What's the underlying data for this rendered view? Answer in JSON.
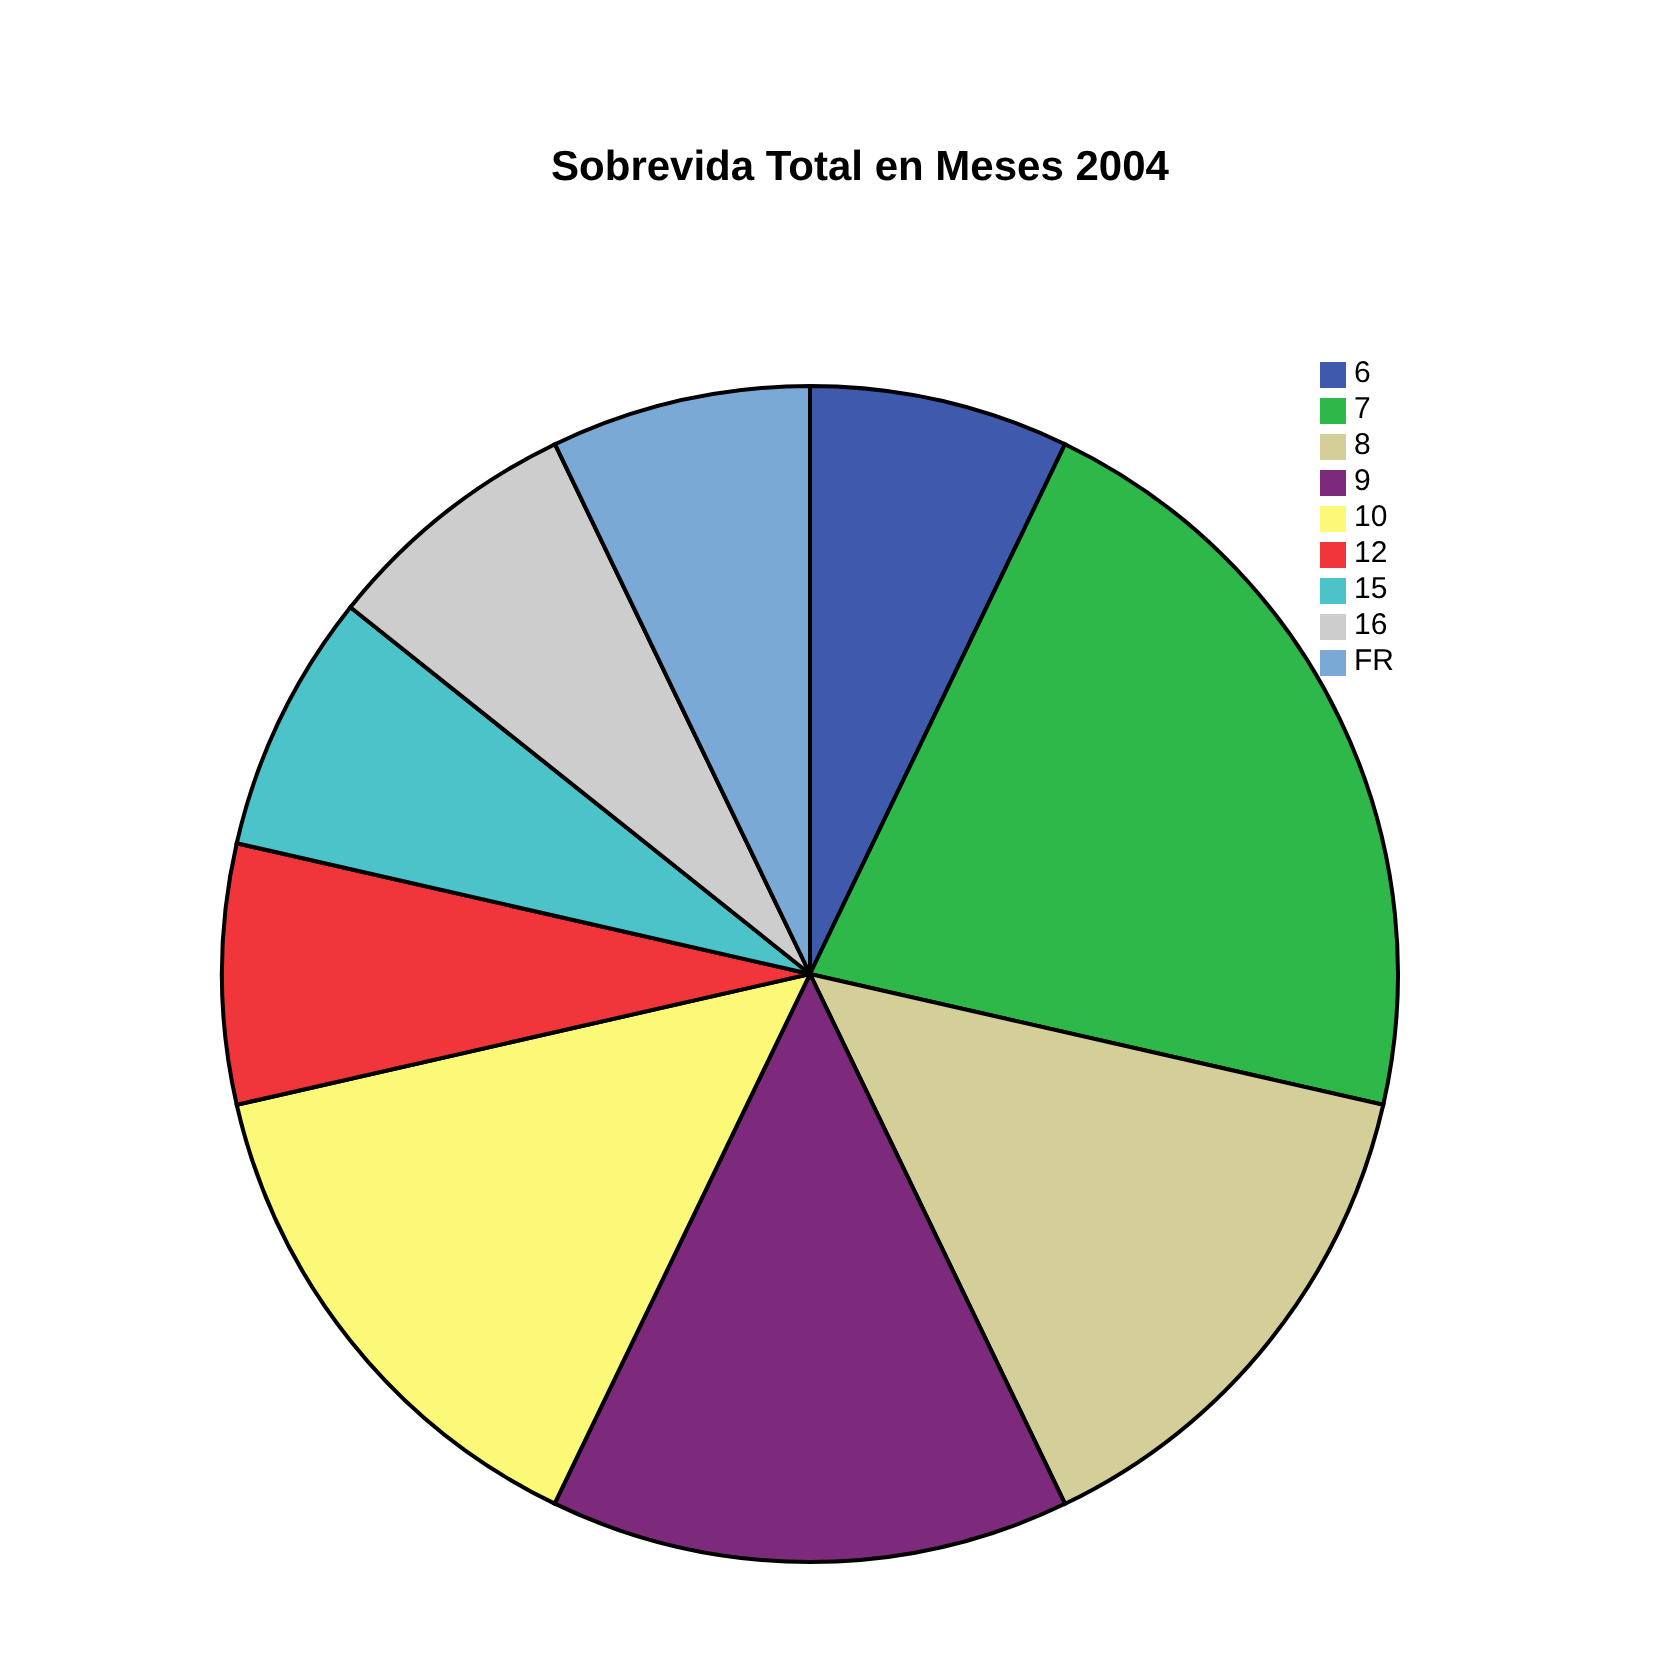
{
  "chart_data": {
    "type": "pie",
    "title": "Sobrevida Total en Meses 2004",
    "categories": [
      "6",
      "7",
      "8",
      "9",
      "10",
      "12",
      "15",
      "16",
      "FR"
    ],
    "values": [
      7.14,
      21.43,
      14.29,
      14.29,
      14.28,
      7.14,
      7.15,
      7.14,
      7.14
    ],
    "colors": [
      "#3f5aad",
      "#2fb84a",
      "#d4cf98",
      "#7d2a7c",
      "#fbf977",
      "#f0353b",
      "#4bc3c8",
      "#cdcdcd",
      "#7ba9d6"
    ],
    "legend": "top right"
  }
}
